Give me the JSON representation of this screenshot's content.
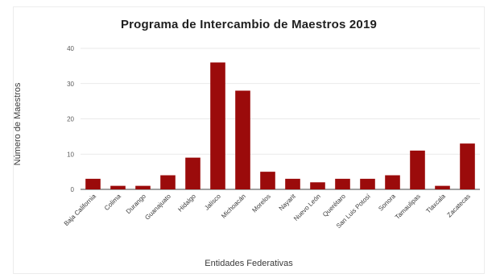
{
  "chart_data": {
    "type": "bar",
    "title": "Programa de Intercambio de Maestros 2019",
    "xlabel": "Entidades Federativas",
    "ylabel": "Número de Maestros",
    "categories": [
      "Baja California",
      "Colima",
      "Durango",
      "Guanajuato",
      "Hidalgo",
      "Jalisco",
      "Michoacán",
      "Morelos",
      "Nayarit",
      "Nuevo León",
      "Querétaro",
      "San Luis Potosí",
      "Sonora",
      "Tamaulipas",
      "Tlaxcala",
      "Zacatecas"
    ],
    "values": [
      3,
      1,
      1,
      4,
      9,
      36,
      28,
      5,
      3,
      2,
      3,
      3,
      4,
      11,
      1,
      13
    ],
    "ylim": [
      0,
      40
    ],
    "yticks": [
      0,
      10,
      20,
      30,
      40
    ],
    "grid": true,
    "legend": "none",
    "bar_color": "#9b0b0b"
  }
}
